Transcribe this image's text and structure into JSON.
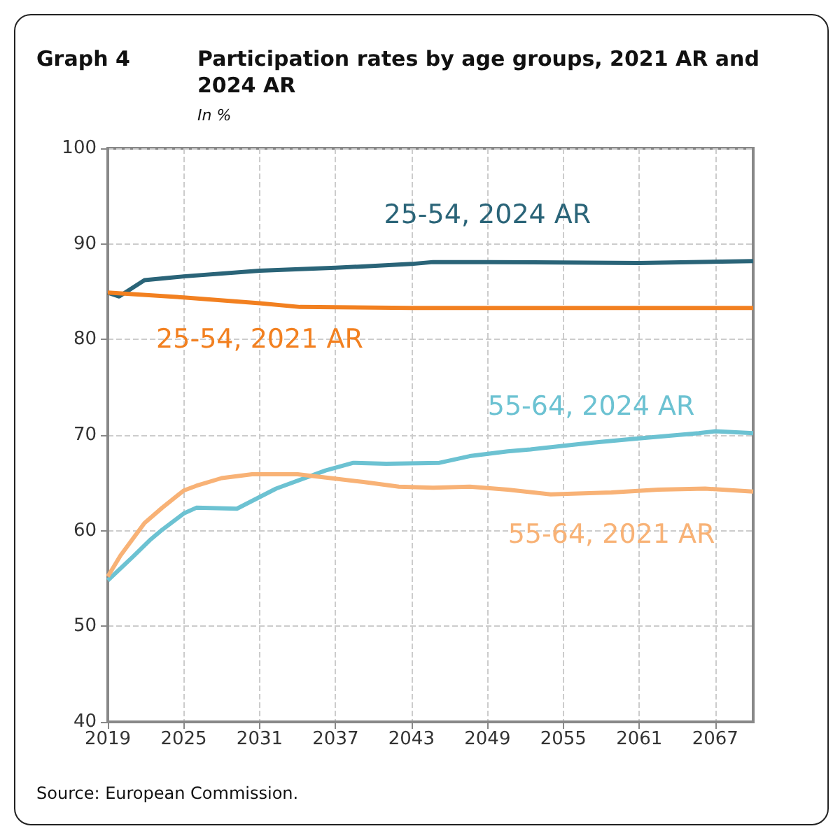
{
  "chart_data": {
    "type": "line",
    "title": "Participation rates by age groups, 2021 AR and 2024 AR",
    "subtitle": "In %",
    "annotations": [
      "Graph 4",
      "Source: European Commission."
    ],
    "xlim": [
      2019,
      2070
    ],
    "xticks": [
      2019,
      2025,
      2031,
      2037,
      2043,
      2049,
      2055,
      2061,
      2067
    ],
    "ylim": [
      40,
      100
    ],
    "yticks": [
      40,
      50,
      60,
      70,
      80,
      90,
      100
    ],
    "grid": true,
    "marker": "none",
    "line_style": "solid",
    "series": [
      {
        "name": "25-54, 2024 AR",
        "color": "#2a6478",
        "x": [
          2019,
          2019.9,
          2021.9,
          2025,
          2031,
          2037,
          2043,
          2044.7,
          2049,
          2061,
          2070
        ],
        "values": [
          84.9,
          84.5,
          86.2,
          86.6,
          87.2,
          87.5,
          87.9,
          88.1,
          88.1,
          88.0,
          88.2
        ]
      },
      {
        "name": "25-54, 2021 AR",
        "color": "#f28020",
        "x": [
          2019,
          2025,
          2031,
          2034.2,
          2043,
          2055,
          2070
        ],
        "values": [
          84.9,
          84.4,
          83.8,
          83.4,
          83.3,
          83.3,
          83.3
        ]
      },
      {
        "name": "55-64, 2024 AR",
        "color": "#6cc2d2",
        "x": [
          2019,
          2021,
          2022.4,
          2023.3,
          2025,
          2026,
          2029.2,
          2032.3,
          2036.2,
          2038.4,
          2041,
          2045.2,
          2047.6,
          2050.6,
          2052.4,
          2057.2,
          2060.5,
          2065.7,
          2067,
          2070
        ],
        "values": [
          54.8,
          57.3,
          59.1,
          60.1,
          61.8,
          62.4,
          62.3,
          64.4,
          66.3,
          67.1,
          67.0,
          67.1,
          67.8,
          68.3,
          68.5,
          69.2,
          69.6,
          70.2,
          70.4,
          70.2
        ]
      },
      {
        "name": "55-64, 2021 AR",
        "color": "#f8b276",
        "x": [
          2019,
          2020,
          2021.9,
          2023.3,
          2025,
          2026,
          2028,
          2030.4,
          2034,
          2036.6,
          2039.2,
          2042,
          2044.7,
          2047.6,
          2050.6,
          2054,
          2058.8,
          2062.5,
          2066.2,
          2070
        ],
        "values": [
          55.2,
          57.4,
          60.8,
          62.4,
          64.2,
          64.7,
          65.5,
          65.9,
          65.9,
          65.5,
          65.1,
          64.6,
          64.5,
          64.6,
          64.3,
          63.8,
          64.0,
          64.3,
          64.4,
          64.1
        ]
      }
    ]
  }
}
